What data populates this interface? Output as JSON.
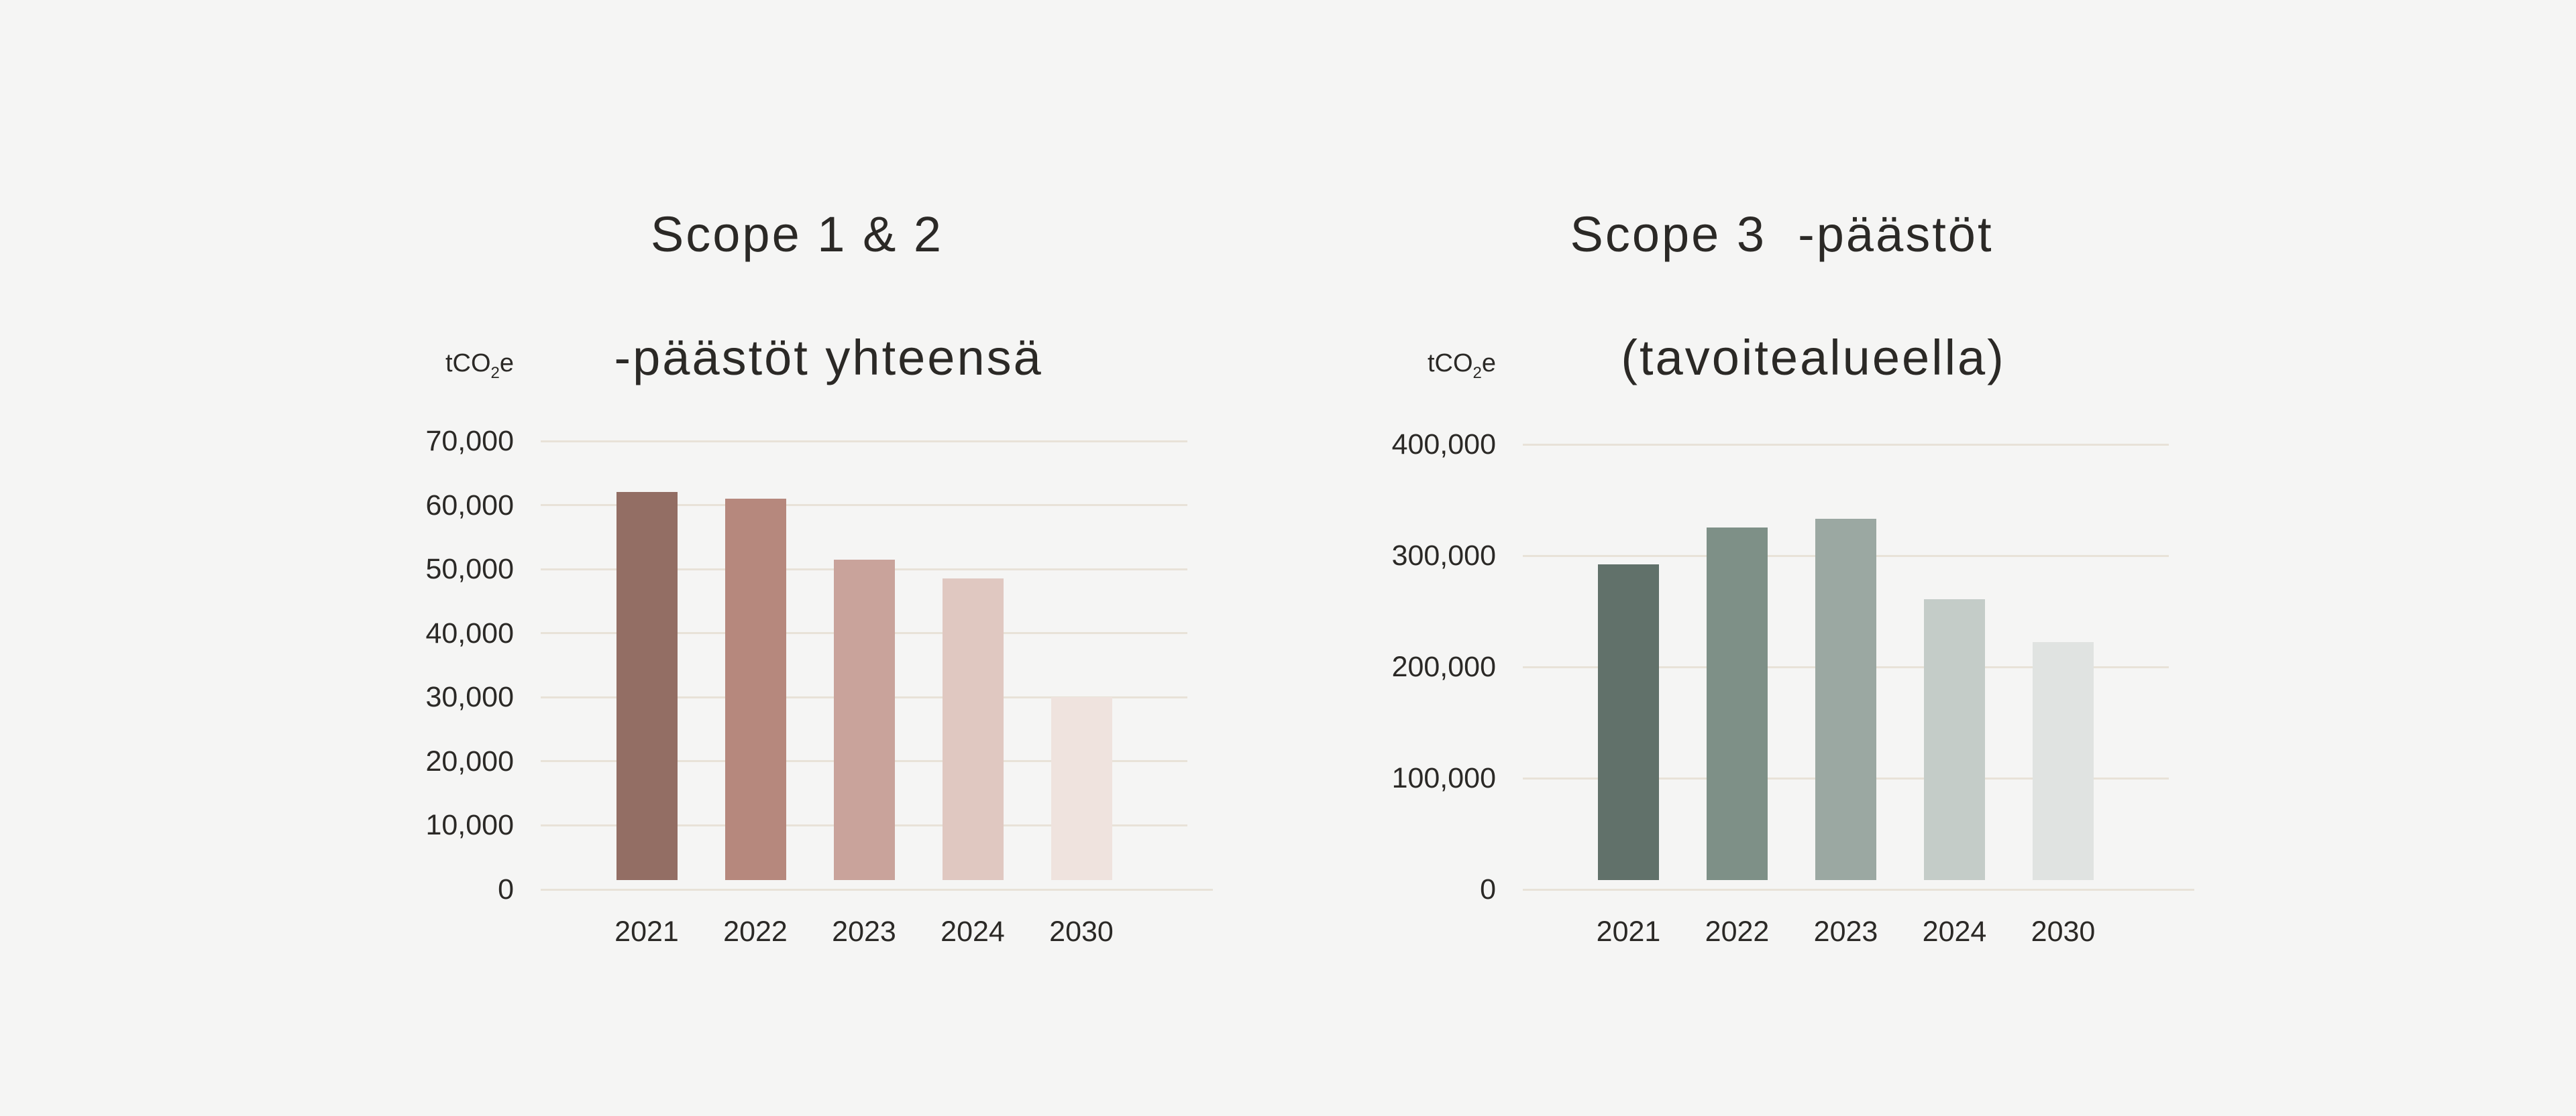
{
  "page": {
    "background": "#F5F5F4",
    "text_color": "#2B2926",
    "gridline_color": "#E8E2D8"
  },
  "charts": [
    {
      "title_lines": [
        "Scope 1 & 2",
        "-päästöt yhteensä"
      ],
      "unit": {
        "prefix": "tCO",
        "sub": "2",
        "suffix": "e"
      },
      "chart_data": {
        "type": "bar",
        "title": "Scope 1 & 2 -päästöt yhteensä",
        "ylabel": "tCO2e",
        "xlabel": "",
        "categories": [
          "2021",
          "2022",
          "2023",
          "2024",
          "2030"
        ],
        "values": [
          62000,
          61000,
          51500,
          48500,
          30000
        ],
        "bar_colors": [
          "#936E64",
          "#B6887D",
          "#C9A39B",
          "#E0C8C1",
          "#EFE3DE"
        ],
        "ylim": [
          0,
          70000
        ],
        "y_ticks": [
          {
            "value": 70000,
            "label": "70,000"
          },
          {
            "value": 60000,
            "label": "60,000"
          },
          {
            "value": 50000,
            "label": "50,000"
          },
          {
            "value": 40000,
            "label": "40,000"
          },
          {
            "value": 30000,
            "label": "30,000"
          },
          {
            "value": 20000,
            "label": "20,000"
          },
          {
            "value": 10000,
            "label": "10,000"
          },
          {
            "value": 0,
            "label": "0"
          }
        ],
        "grid": true,
        "legend": false
      }
    },
    {
      "title_lines": [
        "Scope 3  -päästöt",
        "(tavoitealueella)"
      ],
      "unit": {
        "prefix": "tCO",
        "sub": "2",
        "suffix": "e"
      },
      "chart_data": {
        "type": "bar",
        "title": "Scope 3 -päästöt (tavoitealueella)",
        "ylabel": "tCO2e",
        "xlabel": "",
        "categories": [
          "2021",
          "2022",
          "2023",
          "2024",
          "2030"
        ],
        "values": [
          292000,
          325000,
          333000,
          261000,
          222000
        ],
        "bar_colors": [
          "#61716A",
          "#7E9087",
          "#9BA8A2",
          "#C4CCC8",
          "#E0E3E1"
        ],
        "ylim": [
          0,
          400000
        ],
        "y_ticks": [
          {
            "value": 400000,
            "label": "400,000"
          },
          {
            "value": 300000,
            "label": "300,000"
          },
          {
            "value": 200000,
            "label": "200,000"
          },
          {
            "value": 100000,
            "label": "100,000"
          },
          {
            "value": 0,
            "label": "0"
          }
        ],
        "grid": true,
        "legend": false
      }
    }
  ]
}
